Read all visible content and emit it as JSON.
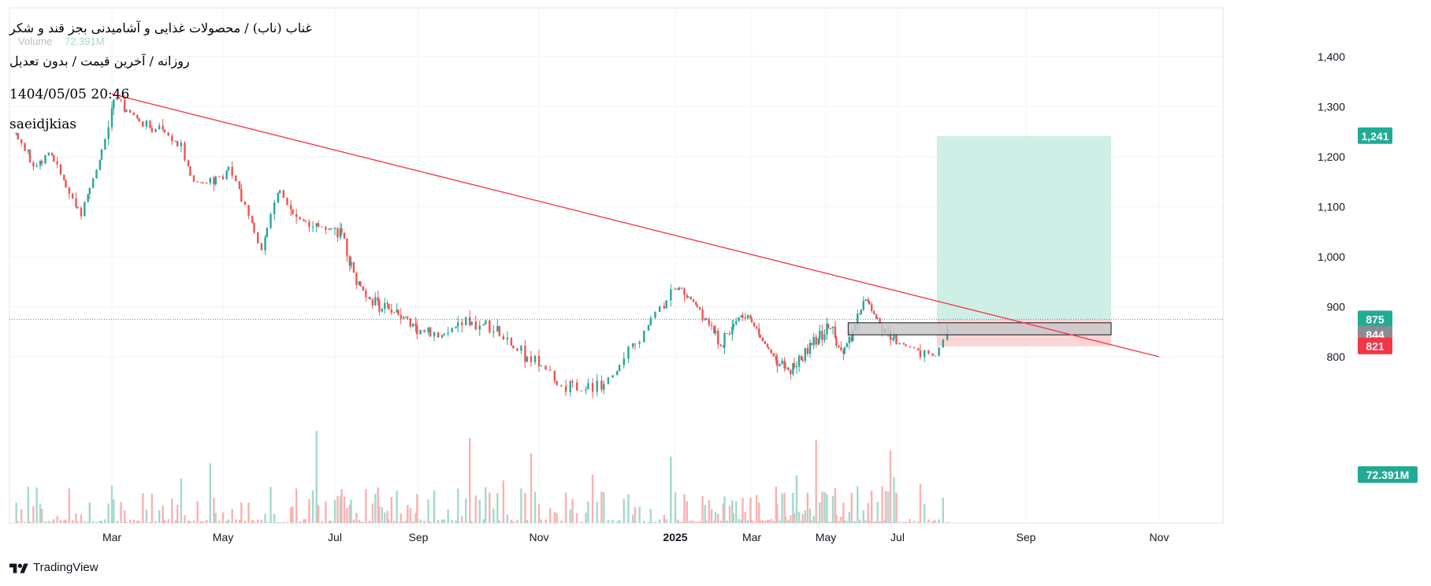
{
  "header": {
    "title": "غناب (ناب) / محصولات غذایی و آشامیدنی بجز قند و شکر",
    "subtitle": "روزانه / آخرین قیمت / بدون تعدیل",
    "datetime": "1404/05/05 20:46",
    "author": "saeidjkias",
    "volume_label": "Volume",
    "volume_value": "72.391M"
  },
  "footer": {
    "brand": "TradingView"
  },
  "colors": {
    "up": "#26a69a",
    "down": "#ef5350",
    "up_volume": "#a4d9cc",
    "down_volume": "#f7b3b1",
    "trendline": "#f23645",
    "target_zone": "#cfeee6",
    "stop_zone": "#fbd5d5",
    "level_box": "#c8c8c8",
    "grid": "#f0f3fa",
    "axis_text": "#131722"
  },
  "chart_data": {
    "type": "candlestick",
    "y_ticks": [
      "1,400",
      "1,300",
      "1,200",
      "1,100",
      "1,000",
      "900",
      "800"
    ],
    "x_ticks": [
      "Mar",
      "May",
      "Jul",
      "Sep",
      "Nov",
      "2025",
      "Mar",
      "May",
      "Jul",
      "Sep",
      "Nov"
    ],
    "ylim": [
      760,
      1480
    ],
    "price_labels": [
      {
        "text": "1,241",
        "value": 1241,
        "color": "#22ab94"
      },
      {
        "text": "875",
        "value": 875,
        "color": "#22ab94"
      },
      {
        "text": "844",
        "value": 844,
        "color": "#8b8d93"
      },
      {
        "text": "821",
        "value": 821,
        "color": "#f23645"
      },
      {
        "text": "72.391M",
        "value": 72.391,
        "color": "#22ab94",
        "pane": "volume"
      }
    ],
    "last_price": 875,
    "trendline": {
      "start": {
        "date": "2024-03-01",
        "price": 1325
      },
      "end": {
        "date": "2025-11-01",
        "price": 800
      }
    },
    "long_position": {
      "entry": 875,
      "target": 1241,
      "stop": 821,
      "start_date": "2025-07-20",
      "end_date": "2025-10-10"
    },
    "support_box": {
      "top": 868,
      "bottom": 844,
      "start_date": "2025-05-20",
      "end_date": "2025-10-10"
    },
    "price_path": [
      {
        "date": "2024-01-05",
        "price": 1245
      },
      {
        "date": "2024-01-15",
        "price": 1180
      },
      {
        "date": "2024-01-25",
        "price": 1210
      },
      {
        "date": "2024-02-05",
        "price": 1130
      },
      {
        "date": "2024-02-12",
        "price": 1090
      },
      {
        "date": "2024-02-20",
        "price": 1160
      },
      {
        "date": "2024-02-27",
        "price": 1240
      },
      {
        "date": "2024-03-03",
        "price": 1320
      },
      {
        "date": "2024-03-08",
        "price": 1300
      },
      {
        "date": "2024-03-20",
        "price": 1260
      },
      {
        "date": "2024-03-30",
        "price": 1250
      },
      {
        "date": "2024-04-08",
        "price": 1220
      },
      {
        "date": "2024-04-15",
        "price": 1150
      },
      {
        "date": "2024-04-25",
        "price": 1145
      },
      {
        "date": "2024-05-05",
        "price": 1180
      },
      {
        "date": "2024-05-15",
        "price": 1090
      },
      {
        "date": "2024-05-22",
        "price": 1010
      },
      {
        "date": "2024-06-01",
        "price": 1140
      },
      {
        "date": "2024-06-08",
        "price": 1080
      },
      {
        "date": "2024-06-20",
        "price": 1065
      },
      {
        "date": "2024-07-05",
        "price": 1050
      },
      {
        "date": "2024-07-15",
        "price": 970
      },
      {
        "date": "2024-07-25",
        "price": 920
      },
      {
        "date": "2024-08-10",
        "price": 895
      },
      {
        "date": "2024-08-25",
        "price": 875
      },
      {
        "date": "2024-09-10",
        "price": 835
      },
      {
        "date": "2024-09-25",
        "price": 875
      },
      {
        "date": "2024-10-08",
        "price": 860
      },
      {
        "date": "2024-10-20",
        "price": 815
      },
      {
        "date": "2024-11-01",
        "price": 790
      },
      {
        "date": "2024-11-12",
        "price": 740
      },
      {
        "date": "2024-11-22",
        "price": 730
      },
      {
        "date": "2024-12-05",
        "price": 765
      },
      {
        "date": "2024-12-15",
        "price": 830
      },
      {
        "date": "2024-12-25",
        "price": 900
      },
      {
        "date": "2025-01-05",
        "price": 940
      },
      {
        "date": "2025-01-15",
        "price": 910
      },
      {
        "date": "2025-01-25",
        "price": 880
      },
      {
        "date": "2025-02-05",
        "price": 820
      },
      {
        "date": "2025-02-15",
        "price": 870
      },
      {
        "date": "2025-02-25",
        "price": 890
      },
      {
        "date": "2025-03-08",
        "price": 840
      },
      {
        "date": "2025-03-20",
        "price": 800
      },
      {
        "date": "2025-03-30",
        "price": 770
      },
      {
        "date": "2025-04-10",
        "price": 790
      },
      {
        "date": "2025-04-22",
        "price": 830
      },
      {
        "date": "2025-05-05",
        "price": 860
      },
      {
        "date": "2025-05-15",
        "price": 805
      },
      {
        "date": "2025-05-25",
        "price": 855
      },
      {
        "date": "2025-06-05",
        "price": 920
      },
      {
        "date": "2025-06-12",
        "price": 880
      },
      {
        "date": "2025-06-25",
        "price": 840
      },
      {
        "date": "2025-07-10",
        "price": 815
      },
      {
        "date": "2025-07-20",
        "price": 800
      },
      {
        "date": "2025-07-26",
        "price": 875
      }
    ]
  }
}
